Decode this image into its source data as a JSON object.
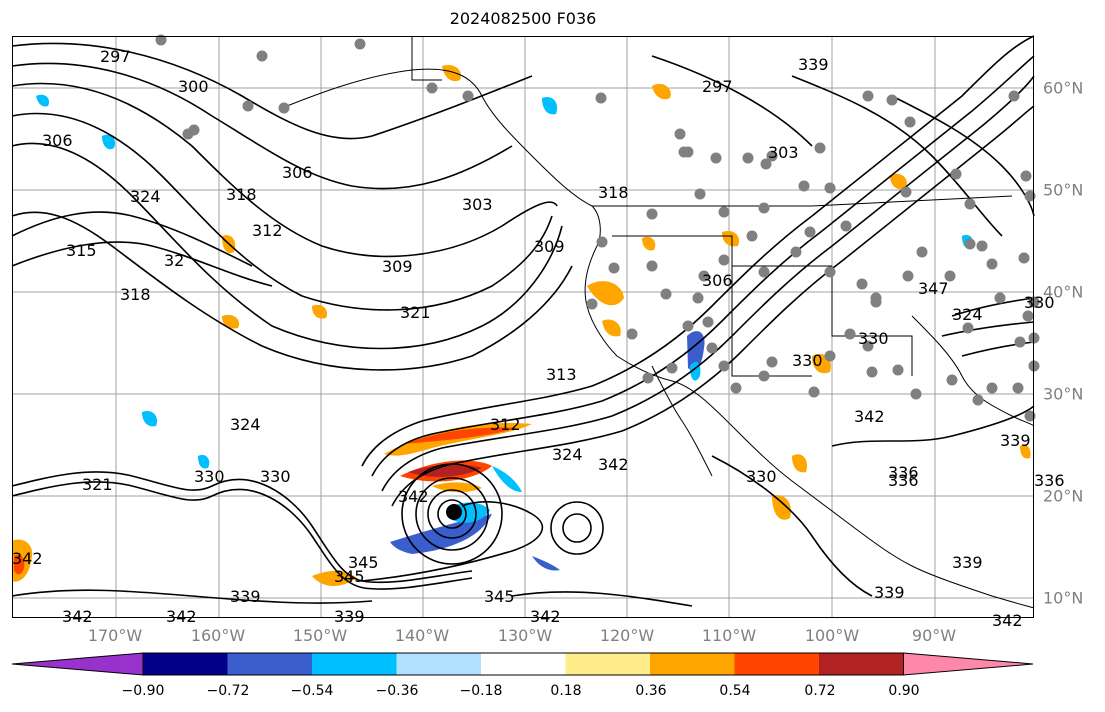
{
  "title": "2024082500 F036",
  "longitude_labels": [
    "170°W",
    "160°W",
    "150°W",
    "140°W",
    "130°W",
    "120°W",
    "110°W",
    "100°W",
    "90°W"
  ],
  "latitude_labels": [
    "60°N",
    "50°N",
    "40°N",
    "30°N",
    "20°N",
    "10°N"
  ],
  "colorbar": {
    "colors": [
      "#9932cc",
      "#00008b",
      "#3a5fcd",
      "#00bfff",
      "#b0e2ff",
      "#ffffff",
      "#ffec8b",
      "#ffa500",
      "#ff4500",
      "#b22222",
      "#ff88aa"
    ],
    "tick_labels": [
      "−0.90",
      "−0.72",
      "−0.54",
      "−0.36",
      "−0.18",
      "0.18",
      "0.36",
      "0.54",
      "0.72",
      "0.90"
    ]
  },
  "contour_labels": [
    "297",
    "300",
    "306",
    "324",
    "315",
    "318",
    "32",
    "318",
    "306",
    "312",
    "303",
    "309",
    "321",
    "309",
    "318",
    "313",
    "330",
    "324",
    "330",
    "312",
    "324",
    "342",
    "345",
    "342",
    "339",
    "345",
    "342",
    "339",
    "342",
    "342",
    "342",
    "336",
    "339",
    "297",
    "303",
    "306",
    "324",
    "330",
    "330",
    "336",
    "336",
    "339",
    "339",
    "342",
    "339",
    "342",
    "330",
    "345",
    "321",
    "347",
    "330"
  ],
  "colors": {
    "contour": "#000000",
    "grid": "#a0a0a0",
    "stations": "#808080",
    "coast": "#000000"
  }
}
